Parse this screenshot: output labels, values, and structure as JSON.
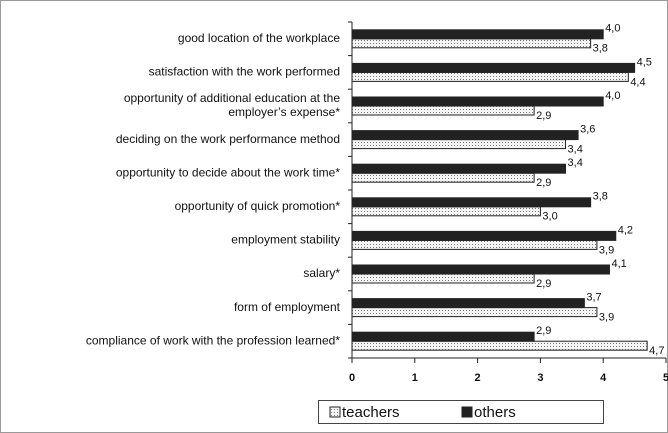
{
  "chart_data": {
    "type": "bar",
    "orientation": "horizontal",
    "categories": [
      "good location of the workplace",
      "satisfaction with the work performed",
      "opportunity of additional education at the\nemployer’s expense*",
      "deciding on the work performance method",
      "opportunity to decide about the work time*",
      "opportunity of quick promotion*",
      "employment stability",
      "salary*",
      "form of employment",
      "compliance of work with the profession learned*"
    ],
    "series": [
      {
        "name": "teachers",
        "color": "#f2f2f2",
        "hatch": "dotted",
        "values": [
          3.8,
          4.4,
          2.9,
          3.4,
          2.9,
          3.0,
          3.9,
          2.9,
          3.9,
          4.7
        ],
        "value_labels": [
          "3,8",
          "4,4",
          "2,9",
          "3,4",
          "2,9",
          "3,0",
          "3,9",
          "2,9",
          "3,9",
          "4,7"
        ]
      },
      {
        "name": "others",
        "color": "#222222",
        "values": [
          4.0,
          4.5,
          4.0,
          3.6,
          3.4,
          3.8,
          4.2,
          4.1,
          3.7,
          2.9
        ],
        "value_labels": [
          "4,0",
          "4,5",
          "4,0",
          "3,6",
          "3,4",
          "3,8",
          "4,2",
          "4,1",
          "3,7",
          "2,9"
        ]
      }
    ],
    "xlim": [
      0,
      5
    ],
    "xticks": [
      0,
      1,
      2,
      3,
      4,
      5
    ],
    "legend": "bottom"
  }
}
